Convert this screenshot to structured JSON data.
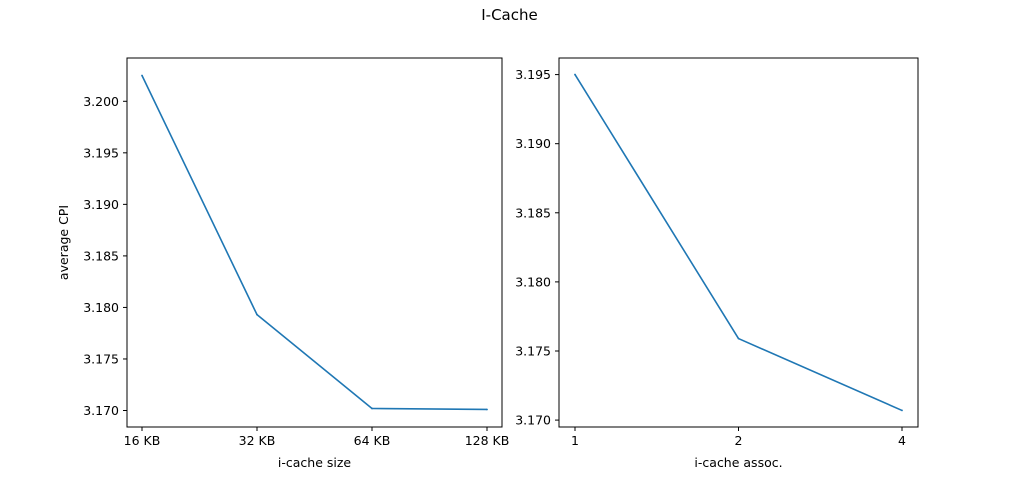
{
  "figure": {
    "title": "I-Cache"
  },
  "colors": {
    "line": "#1f77b4",
    "axes": "#000000",
    "background": "#ffffff"
  },
  "chart_data": [
    {
      "type": "line",
      "title": "",
      "xlabel": "i-cache size",
      "ylabel": "average CPI",
      "categories": [
        "16 KB",
        "32 KB",
        "64 KB",
        "128 KB"
      ],
      "series": [
        {
          "values": [
            3.2025,
            3.1793,
            3.1702,
            3.1701
          ]
        }
      ],
      "yticks": [
        "3.170",
        "3.175",
        "3.180",
        "3.185",
        "3.190",
        "3.195",
        "3.200"
      ],
      "ylim": [
        3.1684,
        3.2042
      ],
      "grid": false
    },
    {
      "type": "line",
      "title": "",
      "xlabel": "i-cache assoc.",
      "ylabel": "",
      "categories": [
        "1",
        "2",
        "4"
      ],
      "series": [
        {
          "values": [
            3.195,
            3.1759,
            3.1707
          ]
        }
      ],
      "yticks": [
        "3.170",
        "3.175",
        "3.180",
        "3.185",
        "3.190",
        "3.195"
      ],
      "ylim": [
        3.1695,
        3.1962
      ],
      "grid": false
    }
  ]
}
